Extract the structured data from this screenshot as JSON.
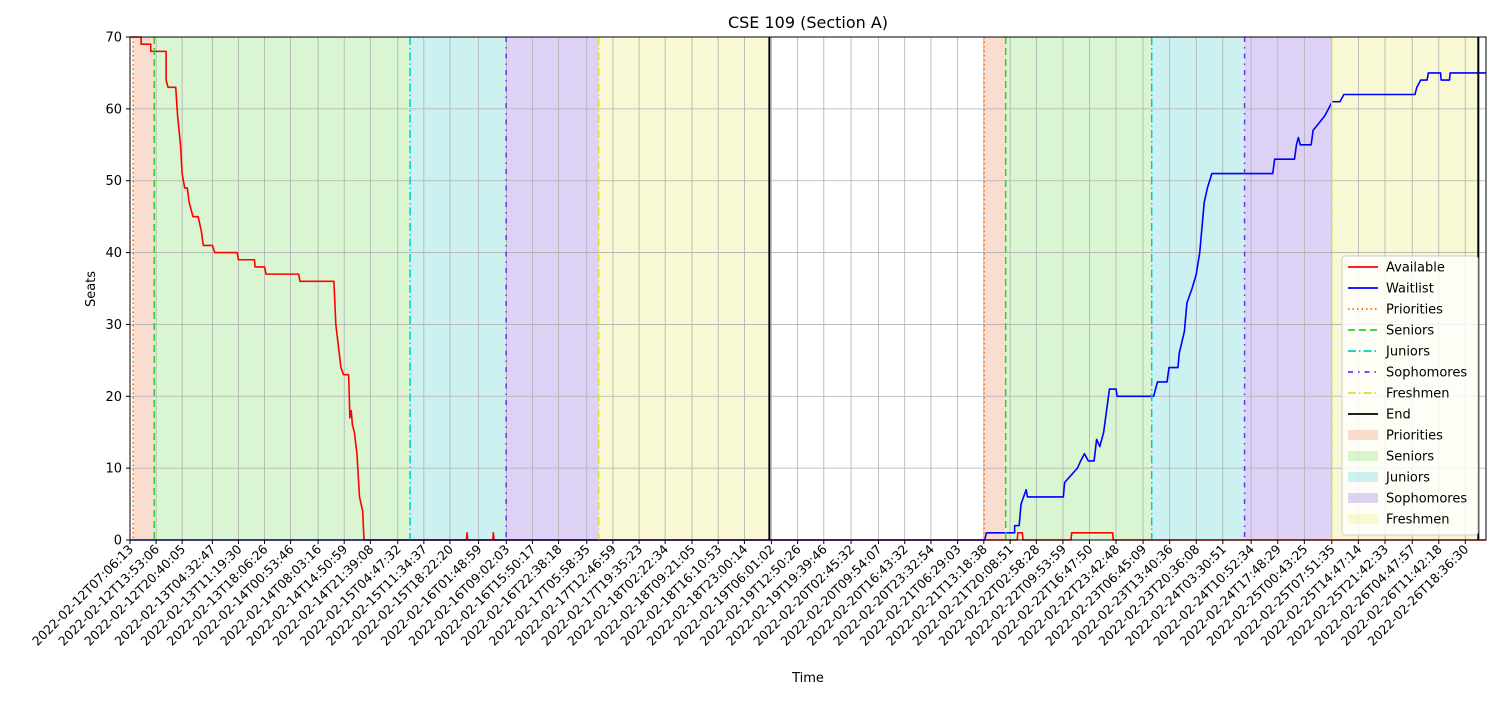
{
  "chart_data": {
    "type": "line",
    "title": "CSE 109 (Section A)",
    "xlabel": "Time",
    "ylabel": "Seats",
    "ylim": [
      0,
      70
    ],
    "yticks": [
      0,
      10,
      20,
      30,
      40,
      50,
      60,
      70
    ],
    "xlim": [
      "2022-02-12T07:06:13",
      "2022-02-27T00:00:00"
    ],
    "grid": true,
    "legend_position": "right",
    "xtick_labels": [
      "2022-02-12T07:06:13",
      "2022-02-12T13:53:06",
      "2022-02-12T20:40:05",
      "2022-02-13T04:32:47",
      "2022-02-13T11:19:30",
      "2022-02-13T18:06:26",
      "2022-02-14T00:53:46",
      "2022-02-14T08:03:16",
      "2022-02-14T14:50:59",
      "2022-02-14T21:39:08",
      "2022-02-15T04:47:32",
      "2022-02-15T11:34:37",
      "2022-02-15T18:22:20",
      "2022-02-16T01:48:59",
      "2022-02-16T09:02:03",
      "2022-02-16T15:50:17",
      "2022-02-16T22:38:18",
      "2022-02-17T05:58:35",
      "2022-02-17T12:46:59",
      "2022-02-17T19:35:23",
      "2022-02-18T02:22:34",
      "2022-02-18T09:21:05",
      "2022-02-18T16:10:53",
      "2022-02-18T23:00:14",
      "2022-02-19T06:01:02",
      "2022-02-19T12:50:26",
      "2022-02-19T19:39:46",
      "2022-02-20T02:45:32",
      "2022-02-20T09:54:07",
      "2022-02-20T16:43:32",
      "2022-02-20T23:32:54",
      "2022-02-21T06:29:03",
      "2022-02-21T13:18:38",
      "2022-02-21T20:08:51",
      "2022-02-22T02:58:28",
      "2022-02-22T09:53:59",
      "2022-02-22T16:47:50",
      "2022-02-22T23:42:48",
      "2022-02-23T06:45:09",
      "2022-02-23T13:40:36",
      "2022-02-23T20:36:08",
      "2022-02-24T03:30:51",
      "2022-02-24T10:52:34",
      "2022-02-24T17:48:29",
      "2022-02-25T00:43:25",
      "2022-02-25T07:51:35",
      "2022-02-25T14:47:14",
      "2022-02-25T21:42:33",
      "2022-02-26T04:47:57",
      "2022-02-26T11:42:18",
      "2022-02-26T18:36:30"
    ],
    "series": [
      {
        "name": "Available",
        "color": "#ff0000",
        "points": [
          [
            "2022-02-12T07:06:13",
            70
          ],
          [
            "2022-02-12T10:00:00",
            70
          ],
          [
            "2022-02-12T10:00:01",
            69
          ],
          [
            "2022-02-12T12:30:00",
            69
          ],
          [
            "2022-02-12T12:30:01",
            68
          ],
          [
            "2022-02-12T16:30:00",
            68
          ],
          [
            "2022-02-12T16:30:01",
            64
          ],
          [
            "2022-02-12T17:00:00",
            63
          ],
          [
            "2022-02-12T19:00:00",
            63
          ],
          [
            "2022-02-12T19:30:00",
            59
          ],
          [
            "2022-02-12T20:15:00",
            55
          ],
          [
            "2022-02-12T20:40:05",
            51
          ],
          [
            "2022-02-12T21:20:00",
            49
          ],
          [
            "2022-02-12T22:00:00",
            49
          ],
          [
            "2022-02-12T22:30:00",
            47
          ],
          [
            "2022-02-12T23:30:00",
            45
          ],
          [
            "2022-02-13T00:50:00",
            45
          ],
          [
            "2022-02-13T01:40:00",
            43
          ],
          [
            "2022-02-13T02:10:00",
            41
          ],
          [
            "2022-02-13T04:32:47",
            41
          ],
          [
            "2022-02-13T05:10:00",
            40
          ],
          [
            "2022-02-13T11:00:00",
            40
          ],
          [
            "2022-02-13T11:19:30",
            39
          ],
          [
            "2022-02-13T15:30:00",
            39
          ],
          [
            "2022-02-13T15:40:00",
            38
          ],
          [
            "2022-02-13T18:06:26",
            38
          ],
          [
            "2022-02-13T18:30:00",
            37
          ],
          [
            "2022-02-14T03:00:00",
            37
          ],
          [
            "2022-02-14T03:20:00",
            36
          ],
          [
            "2022-02-14T12:10:00",
            36
          ],
          [
            "2022-02-14T12:40:00",
            30
          ],
          [
            "2022-02-14T13:20:00",
            27
          ],
          [
            "2022-02-14T14:00:00",
            24
          ],
          [
            "2022-02-14T14:40:00",
            23
          ],
          [
            "2022-02-14T16:00:00",
            23
          ],
          [
            "2022-02-14T16:20:00",
            17
          ],
          [
            "2022-02-14T16:40:00",
            18
          ],
          [
            "2022-02-14T17:00:00",
            16
          ],
          [
            "2022-02-14T17:30:00",
            15
          ],
          [
            "2022-02-14T18:10:00",
            12
          ],
          [
            "2022-02-14T18:50:00",
            6
          ],
          [
            "2022-02-14T19:40:00",
            4
          ],
          [
            "2022-02-14T20:00:00",
            0
          ],
          [
            "2022-02-15T22:40:00",
            0
          ],
          [
            "2022-02-15T22:50:00",
            1
          ],
          [
            "2022-02-15T23:00:00",
            0
          ],
          [
            "2022-02-16T05:30:00",
            0
          ],
          [
            "2022-02-16T05:40:00",
            1
          ],
          [
            "2022-02-16T05:50:00",
            0
          ],
          [
            "2022-02-21T22:00:00",
            0
          ],
          [
            "2022-02-21T22:10:00",
            1
          ],
          [
            "2022-02-21T23:20:00",
            1
          ],
          [
            "2022-02-21T23:30:00",
            0
          ],
          [
            "2022-02-22T12:00:00",
            0
          ],
          [
            "2022-02-22T12:10:00",
            1
          ],
          [
            "2022-02-22T22:50:00",
            1
          ],
          [
            "2022-02-22T23:00:00",
            0
          ],
          [
            "2022-02-27T00:00:00",
            0
          ]
        ]
      },
      {
        "name": "Waitlist",
        "color": "#0000ff",
        "points": [
          [
            "2022-02-12T07:06:13",
            0
          ],
          [
            "2022-02-21T13:30:00",
            0
          ],
          [
            "2022-02-21T14:00:00",
            1
          ],
          [
            "2022-02-21T21:20:00",
            1
          ],
          [
            "2022-02-21T21:20:01",
            2
          ],
          [
            "2022-02-21T22:30:00",
            2
          ],
          [
            "2022-02-21T23:00:00",
            5
          ],
          [
            "2022-02-21T23:40:00",
            6
          ],
          [
            "2022-02-22T00:20:00",
            7
          ],
          [
            "2022-02-22T00:40:00",
            6
          ],
          [
            "2022-02-22T10:00:00",
            6
          ],
          [
            "2022-02-22T10:20:00",
            8
          ],
          [
            "2022-02-22T12:00:00",
            9
          ],
          [
            "2022-02-22T13:40:00",
            10
          ],
          [
            "2022-02-22T14:30:00",
            11
          ],
          [
            "2022-02-22T15:30:00",
            12
          ],
          [
            "2022-02-22T16:30:00",
            11
          ],
          [
            "2022-02-22T18:00:00",
            11
          ],
          [
            "2022-02-22T18:40:00",
            14
          ],
          [
            "2022-02-22T19:30:00",
            13
          ],
          [
            "2022-02-22T20:30:00",
            15
          ],
          [
            "2022-02-22T21:30:00",
            19
          ],
          [
            "2022-02-22T22:00:00",
            21
          ],
          [
            "2022-02-22T23:42:48",
            21
          ],
          [
            "2022-02-23T00:00:00",
            20
          ],
          [
            "2022-02-23T09:30:00",
            20
          ],
          [
            "2022-02-23T10:30:00",
            22
          ],
          [
            "2022-02-23T13:00:00",
            22
          ],
          [
            "2022-02-23T13:30:00",
            24
          ],
          [
            "2022-02-23T15:50:00",
            24
          ],
          [
            "2022-02-23T16:10:00",
            26
          ],
          [
            "2022-02-23T17:30:00",
            29
          ],
          [
            "2022-02-23T18:10:00",
            33
          ],
          [
            "2022-02-23T19:30:00",
            35
          ],
          [
            "2022-02-23T20:36:08",
            37
          ],
          [
            "2022-02-23T21:30:00",
            40
          ],
          [
            "2022-02-23T22:40:00",
            47
          ],
          [
            "2022-02-23T23:30:00",
            49
          ],
          [
            "2022-02-24T00:40:00",
            51
          ],
          [
            "2022-02-24T16:30:00",
            51
          ],
          [
            "2022-02-24T17:00:00",
            53
          ],
          [
            "2022-02-24T22:10:00",
            53
          ],
          [
            "2022-02-24T22:40:00",
            55
          ],
          [
            "2022-02-24T23:10:00",
            56
          ],
          [
            "2022-02-24T23:40:00",
            55
          ],
          [
            "2022-02-25T02:30:00",
            55
          ],
          [
            "2022-02-25T03:00:00",
            57
          ],
          [
            "2022-02-25T04:30:00",
            58
          ],
          [
            "2022-02-25T06:00:00",
            59
          ],
          [
            "2022-02-25T07:00:00",
            60
          ],
          [
            "2022-02-25T08:00:00",
            61
          ],
          [
            "2022-02-25T10:00:00",
            61
          ],
          [
            "2022-02-25T11:00:00",
            62
          ],
          [
            "2022-02-26T05:30:00",
            62
          ],
          [
            "2022-02-26T06:00:00",
            63
          ],
          [
            "2022-02-26T07:00:00",
            64
          ],
          [
            "2022-02-26T08:40:00",
            64
          ],
          [
            "2022-02-26T09:00:00",
            65
          ],
          [
            "2022-02-26T12:10:00",
            65
          ],
          [
            "2022-02-26T12:20:00",
            64
          ],
          [
            "2022-02-26T14:30:00",
            64
          ],
          [
            "2022-02-26T14:40:00",
            65
          ],
          [
            "2022-02-27T00:00:00",
            65
          ]
        ]
      }
    ],
    "phase_lines": [
      {
        "name": "Priorities",
        "color": "#ff6600",
        "dash": "1.5,3",
        "times": [
          "2022-02-12T07:55:00",
          "2022-02-21T13:23:00"
        ]
      },
      {
        "name": "Seniors",
        "color": "#33cc33",
        "dash": "7,4",
        "times": [
          "2022-02-12T13:25:00",
          "2022-02-21T19:00:00"
        ]
      },
      {
        "name": "Juniors",
        "color": "#00cccc",
        "dash": "8,3,1.5,3",
        "times": [
          "2022-02-15T08:00:00",
          "2022-02-23T09:00:00"
        ]
      },
      {
        "name": "Sophomores",
        "color": "#6633ee",
        "dash": "5,5,1.5,5",
        "times": [
          "2022-02-16T09:00:00",
          "2022-02-24T09:10:00"
        ]
      },
      {
        "name": "Freshmen",
        "color": "#dddd33",
        "dash": "8,3,1.5,3",
        "times": [
          "2022-02-17T09:05:00",
          "2022-02-25T07:51:35"
        ]
      },
      {
        "name": "End",
        "color": "#000000",
        "dash": "",
        "times": [
          "2022-02-19T05:30:00",
          "2022-02-26T22:00:00"
        ]
      }
    ],
    "phase_spans": [
      {
        "name": "Priorities",
        "color": "#f5c6ad",
        "ranges": [
          [
            "2022-02-12T07:55:00",
            "2022-02-12T13:25:00"
          ],
          [
            "2022-02-21T13:23:00",
            "2022-02-21T19:00:00"
          ]
        ]
      },
      {
        "name": "Seniors",
        "color": "#bfeeb2",
        "ranges": [
          [
            "2022-02-12T13:25:00",
            "2022-02-15T08:00:00"
          ],
          [
            "2022-02-21T19:00:00",
            "2022-02-23T09:00:00"
          ]
        ]
      },
      {
        "name": "Juniors",
        "color": "#abe8e8",
        "ranges": [
          [
            "2022-02-15T08:00:00",
            "2022-02-16T09:00:00"
          ],
          [
            "2022-02-23T09:00:00",
            "2022-02-24T09:10:00"
          ]
        ]
      },
      {
        "name": "Sophomores",
        "color": "#c7b4ef",
        "ranges": [
          [
            "2022-02-16T09:00:00",
            "2022-02-17T09:05:00"
          ],
          [
            "2022-02-24T09:10:00",
            "2022-02-25T07:51:35"
          ]
        ]
      },
      {
        "name": "Freshmen",
        "color": "#f3f4b8",
        "ranges": [
          [
            "2022-02-17T09:05:00",
            "2022-02-19T05:30:00"
          ],
          [
            "2022-02-25T07:51:35",
            "2022-02-26T22:00:00"
          ]
        ]
      }
    ],
    "legend": [
      {
        "label": "Available",
        "kind": "line",
        "color": "#ff0000",
        "dash": ""
      },
      {
        "label": "Waitlist",
        "kind": "line",
        "color": "#0000ff",
        "dash": ""
      },
      {
        "label": "Priorities",
        "kind": "line",
        "color": "#ff6600",
        "dash": "1.5,3"
      },
      {
        "label": "Seniors",
        "kind": "line",
        "color": "#33cc33",
        "dash": "7,4"
      },
      {
        "label": "Juniors",
        "kind": "line",
        "color": "#00cccc",
        "dash": "8,3,1.5,3"
      },
      {
        "label": "Sophomores",
        "kind": "line",
        "color": "#6633ee",
        "dash": "5,5,1.5,5"
      },
      {
        "label": "Freshmen",
        "kind": "line",
        "color": "#dddd33",
        "dash": "8,3,1.5,3"
      },
      {
        "label": "End",
        "kind": "line",
        "color": "#000000",
        "dash": ""
      },
      {
        "label": "Priorities",
        "kind": "patch",
        "color": "#f5c6ad"
      },
      {
        "label": "Seniors",
        "kind": "patch",
        "color": "#bfeeb2"
      },
      {
        "label": "Juniors",
        "kind": "patch",
        "color": "#abe8e8"
      },
      {
        "label": "Sophomores",
        "kind": "patch",
        "color": "#c7b4ef"
      },
      {
        "label": "Freshmen",
        "kind": "patch",
        "color": "#f3f4b8"
      }
    ]
  }
}
